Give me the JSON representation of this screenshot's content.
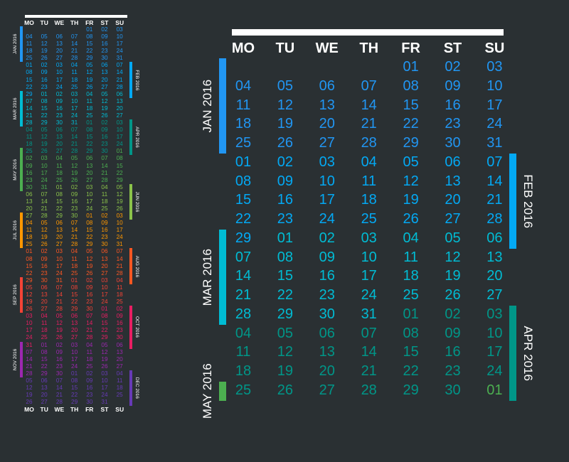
{
  "year": "2016",
  "weekdays": [
    "MO",
    "TU",
    "WE",
    "TH",
    "FR",
    "ST",
    "SU"
  ],
  "months": [
    {
      "label": "JAN 2016",
      "color": "#2196f3",
      "days": [
        "01",
        "02",
        "03",
        "04",
        "05",
        "06",
        "07",
        "08",
        "09",
        "10",
        "11",
        "12",
        "13",
        "14",
        "15",
        "16",
        "17",
        "18",
        "19",
        "20",
        "21",
        "22",
        "23",
        "24",
        "25",
        "26",
        "27",
        "28",
        "29",
        "30",
        "31"
      ]
    },
    {
      "label": "FEB 2016",
      "color": "#03a9f4",
      "days": [
        "01",
        "02",
        "03",
        "04",
        "05",
        "06",
        "07",
        "08",
        "09",
        "10",
        "11",
        "12",
        "13",
        "14",
        "15",
        "16",
        "17",
        "18",
        "19",
        "20",
        "21",
        "22",
        "23",
        "24",
        "25",
        "26",
        "27",
        "28",
        "29"
      ]
    },
    {
      "label": "MAR 2016",
      "color": "#00bcd4",
      "days": [
        "01",
        "02",
        "03",
        "04",
        "05",
        "06",
        "07",
        "08",
        "09",
        "10",
        "11",
        "12",
        "13",
        "14",
        "15",
        "16",
        "17",
        "18",
        "19",
        "20",
        "21",
        "22",
        "23",
        "24",
        "25",
        "26",
        "27",
        "28",
        "29",
        "30",
        "31"
      ]
    },
    {
      "label": "APR 2016",
      "color": "#009688",
      "days": [
        "01",
        "02",
        "03",
        "04",
        "05",
        "06",
        "07",
        "08",
        "09",
        "10",
        "11",
        "12",
        "13",
        "14",
        "15",
        "16",
        "17",
        "18",
        "19",
        "20",
        "21",
        "22",
        "23",
        "24",
        "25",
        "26",
        "27",
        "28",
        "29",
        "30"
      ]
    },
    {
      "label": "MAY 2016",
      "color": "#4caf50",
      "days": [
        "01",
        "02",
        "03",
        "04",
        "05",
        "06",
        "07",
        "08",
        "09",
        "10",
        "11",
        "12",
        "13",
        "14",
        "15",
        "16",
        "17",
        "18",
        "19",
        "20",
        "21",
        "22",
        "23",
        "24",
        "25",
        "26",
        "27",
        "28",
        "29",
        "30",
        "31"
      ]
    },
    {
      "label": "JUN 2016",
      "color": "#8bc34a",
      "days": [
        "01",
        "02",
        "03",
        "04",
        "05",
        "06",
        "07",
        "08",
        "09",
        "10",
        "11",
        "12",
        "13",
        "14",
        "15",
        "16",
        "17",
        "18",
        "19",
        "20",
        "21",
        "22",
        "23",
        "24",
        "25",
        "26",
        "27",
        "28",
        "29",
        "30"
      ]
    },
    {
      "label": "JUL 2016",
      "color": "#ff9800",
      "days": [
        "01",
        "02",
        "03",
        "04",
        "05",
        "06",
        "07",
        "08",
        "09",
        "10",
        "11",
        "12",
        "13",
        "14",
        "15",
        "16",
        "17",
        "18",
        "19",
        "20",
        "21",
        "22",
        "23",
        "24",
        "25",
        "26",
        "27",
        "28",
        "29",
        "30",
        "31"
      ]
    },
    {
      "label": "AUG 2016",
      "color": "#ff5722",
      "days": [
        "01",
        "02",
        "03",
        "04",
        "05",
        "06",
        "07",
        "08",
        "09",
        "10",
        "11",
        "12",
        "13",
        "14",
        "15",
        "16",
        "17",
        "18",
        "19",
        "20",
        "21",
        "22",
        "23",
        "24",
        "25",
        "26",
        "27",
        "28",
        "29",
        "30",
        "31"
      ]
    },
    {
      "label": "SEP 2016",
      "color": "#f44336",
      "days": [
        "01",
        "02",
        "03",
        "04",
        "05",
        "06",
        "07",
        "08",
        "09",
        "10",
        "11",
        "12",
        "13",
        "14",
        "15",
        "16",
        "17",
        "18",
        "19",
        "20",
        "21",
        "22",
        "23",
        "24",
        "25",
        "26",
        "27",
        "28",
        "29",
        "30"
      ]
    },
    {
      "label": "OCT 2016",
      "color": "#e91e63",
      "days": [
        "01",
        "02",
        "03",
        "04",
        "05",
        "06",
        "07",
        "08",
        "09",
        "10",
        "11",
        "12",
        "13",
        "14",
        "15",
        "16",
        "17",
        "18",
        "19",
        "20",
        "21",
        "22",
        "23",
        "24",
        "25",
        "26",
        "27",
        "28",
        "29",
        "30",
        "31"
      ]
    },
    {
      "label": "NOV 2016",
      "color": "#9c27b0",
      "days": [
        "01",
        "02",
        "03",
        "04",
        "05",
        "06",
        "07",
        "08",
        "09",
        "10",
        "11",
        "12",
        "13",
        "14",
        "15",
        "16",
        "17",
        "18",
        "19",
        "20",
        "21",
        "22",
        "23",
        "24",
        "25",
        "26",
        "27",
        "28",
        "29",
        "30"
      ]
    },
    {
      "label": "DEC 2016",
      "color": "#673ab7",
      "days": [
        "01",
        "02",
        "03",
        "04",
        "05",
        "06",
        "07",
        "08",
        "09",
        "10",
        "11",
        "12",
        "13",
        "14",
        "15",
        "16",
        "17",
        "18",
        "19",
        "20",
        "21",
        "22",
        "23",
        "24",
        "25",
        "26",
        "27",
        "28",
        "29",
        "30",
        "31"
      ]
    }
  ]
}
